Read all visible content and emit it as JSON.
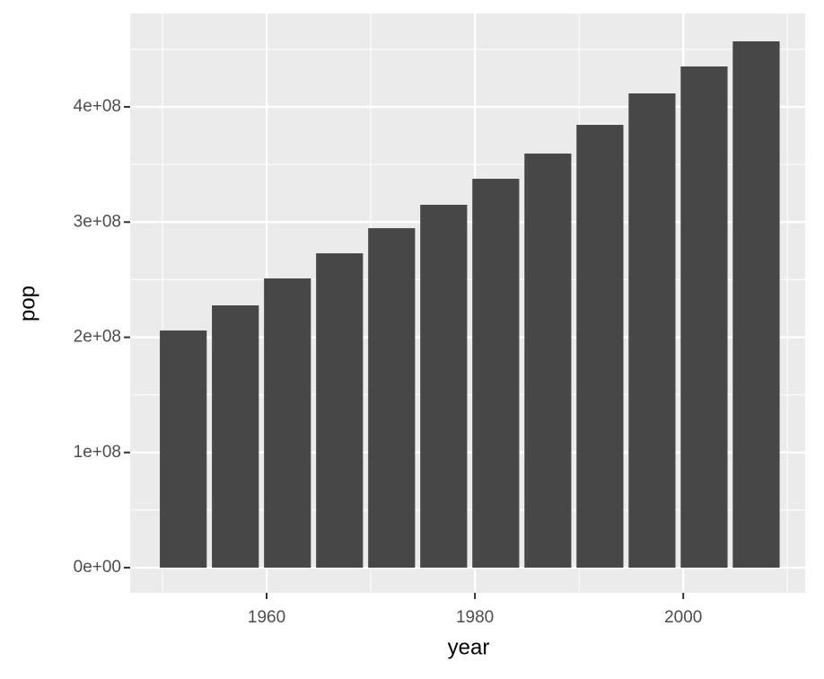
{
  "chart_data": {
    "type": "bar",
    "x_label": "year",
    "y_label": "pop",
    "x": [
      1952,
      1957,
      1962,
      1967,
      1972,
      1977,
      1982,
      1987,
      1992,
      1997,
      2002,
      2007
    ],
    "values": [
      205900000,
      227700000,
      251100000,
      272900000,
      294700000,
      315000000,
      337600000,
      359500000,
      384400000,
      411700000,
      435100000,
      456900000
    ],
    "color": "#474747",
    "xlim": [
      1946.9,
      2011.7
    ],
    "xticks": [
      1960,
      1980,
      2000
    ],
    "xminor": [
      1950,
      1970,
      1990,
      2010
    ],
    "ylim": [
      -21800000,
      481100000
    ],
    "yticks": [
      {
        "value": 0,
        "label": "0e+00"
      },
      {
        "value": 100000000,
        "label": "1e+08"
      },
      {
        "value": 200000000,
        "label": "2e+08"
      },
      {
        "value": 300000000,
        "label": "3e+08"
      },
      {
        "value": 400000000,
        "label": "4e+08"
      }
    ],
    "yminor": [
      50000000,
      150000000,
      250000000,
      350000000,
      450000000
    ],
    "grid": true
  }
}
